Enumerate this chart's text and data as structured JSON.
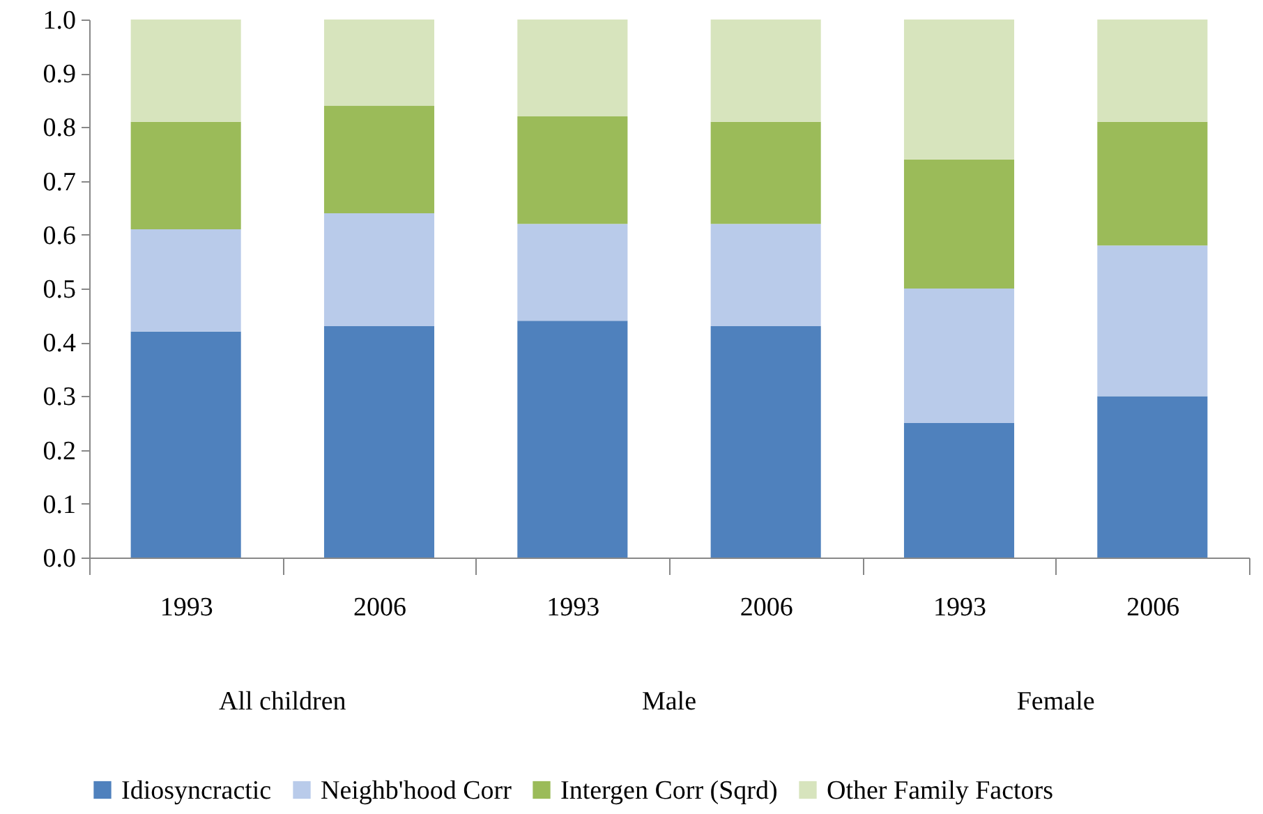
{
  "chart_data": {
    "type": "bar",
    "stacked": true,
    "categories": [
      "1993",
      "2006",
      "1993",
      "2006",
      "1993",
      "2006"
    ],
    "annotations": [
      "All children",
      "Male",
      "Female"
    ],
    "series": [
      {
        "name": "Idiosyncractic",
        "color": "#4f81bd",
        "values": [
          0.42,
          0.43,
          0.44,
          0.43,
          0.25,
          0.3
        ]
      },
      {
        "name": "Neighb'hood Corr",
        "color": "#b9cbea",
        "values": [
          0.19,
          0.21,
          0.18,
          0.19,
          0.25,
          0.28
        ]
      },
      {
        "name": "Intergen Corr (Sqrd)",
        "color": "#9bbb59",
        "values": [
          0.2,
          0.2,
          0.2,
          0.19,
          0.24,
          0.23
        ]
      },
      {
        "name": "Other Family Factors",
        "color": "#d7e4bd",
        "values": [
          0.19,
          0.16,
          0.18,
          0.19,
          0.26,
          0.19
        ]
      }
    ],
    "ylim": [
      0,
      1
    ],
    "yticks": [
      {
        "value": 0,
        "label": "0.0"
      },
      {
        "value": 0.1,
        "label": "0.1"
      },
      {
        "value": 0.2,
        "label": "0.2"
      },
      {
        "value": 0.3,
        "label": "0.3"
      },
      {
        "value": 0.4,
        "label": "0.4"
      },
      {
        "value": 0.5,
        "label": "0.5"
      },
      {
        "value": 0.6,
        "label": "0.6"
      },
      {
        "value": 0.7,
        "label": "0.7"
      },
      {
        "value": 0.8,
        "label": "0.8"
      },
      {
        "value": 0.9,
        "label": "0.9"
      },
      {
        "value": 1,
        "label": "1.0"
      }
    ],
    "grid": false,
    "legend": "bottom"
  }
}
